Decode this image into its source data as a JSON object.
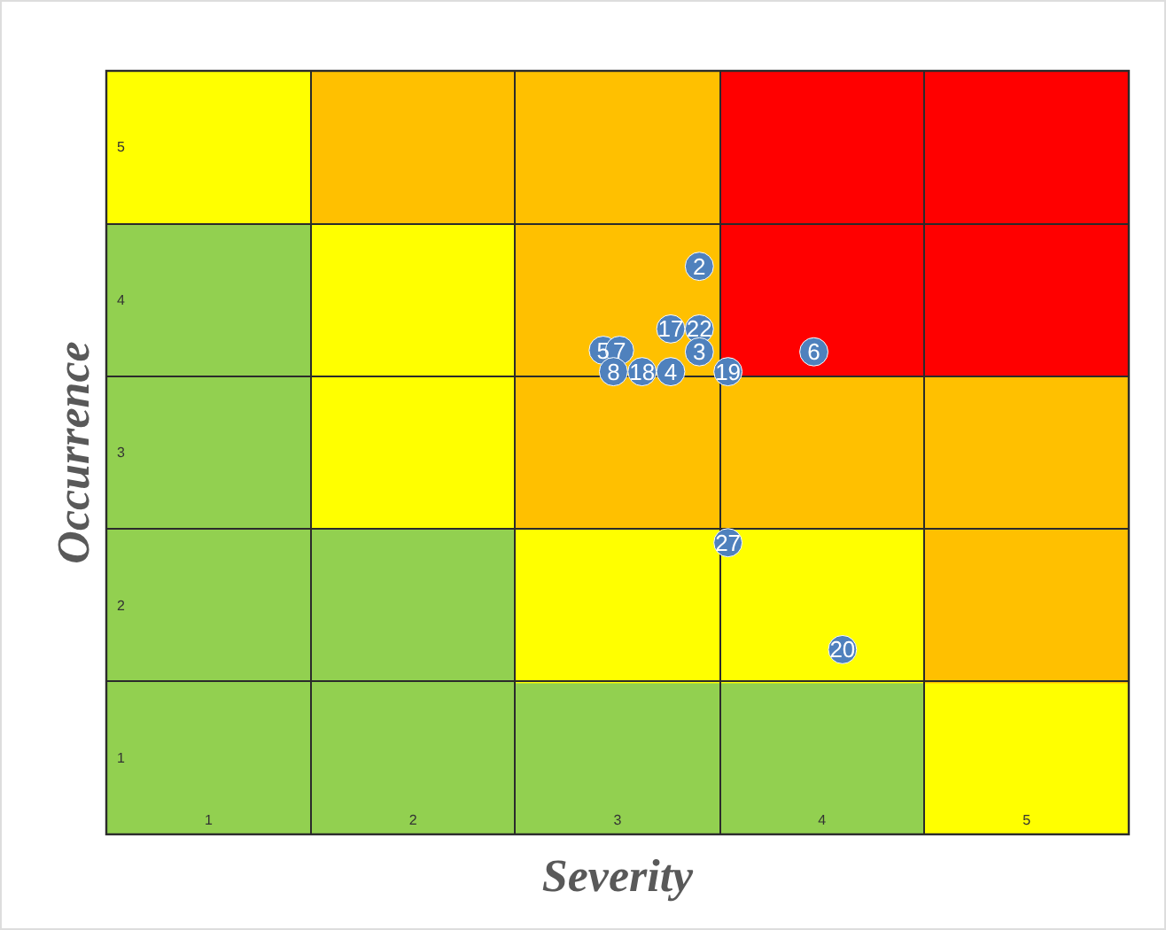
{
  "chart_data": {
    "type": "scatter",
    "xlabel": "Severity",
    "ylabel": "Occurrence",
    "xlim": [
      0.5,
      5.5
    ],
    "ylim": [
      0.5,
      5.5
    ],
    "xticks": [
      1,
      2,
      3,
      4,
      5
    ],
    "yticks": [
      1,
      2,
      3,
      4,
      5
    ],
    "marker": "circle",
    "grid": false,
    "legend": false,
    "series": [
      {
        "color": "#4f81bd",
        "x": [
          3.4,
          3.26,
          3.4,
          3.4,
          2.93,
          3.01,
          2.98,
          3.12,
          3.26,
          3.54,
          3.96,
          3.54,
          4.1
        ],
        "values": [
          4.22,
          3.81,
          3.81,
          3.66,
          3.67,
          3.67,
          3.53,
          3.53,
          3.53,
          3.53,
          3.66,
          2.41,
          1.71
        ]
      }
    ],
    "annotations": [
      {
        "text": "2",
        "x": 3.4,
        "y": 4.22
      },
      {
        "text": "17",
        "x": 3.26,
        "y": 3.81
      },
      {
        "text": "22",
        "x": 3.4,
        "y": 3.81
      },
      {
        "text": "3",
        "x": 3.4,
        "y": 3.66
      },
      {
        "text": "5",
        "x": 2.93,
        "y": 3.67
      },
      {
        "text": "7",
        "x": 3.01,
        "y": 3.67
      },
      {
        "text": "8",
        "x": 2.98,
        "y": 3.53
      },
      {
        "text": "18",
        "x": 3.12,
        "y": 3.53
      },
      {
        "text": "4",
        "x": 3.26,
        "y": 3.53
      },
      {
        "text": "19",
        "x": 3.54,
        "y": 3.53
      },
      {
        "text": "6",
        "x": 3.96,
        "y": 3.66
      },
      {
        "text": "27",
        "x": 3.54,
        "y": 2.41
      },
      {
        "text": "20",
        "x": 4.1,
        "y": 1.71
      }
    ]
  }
}
